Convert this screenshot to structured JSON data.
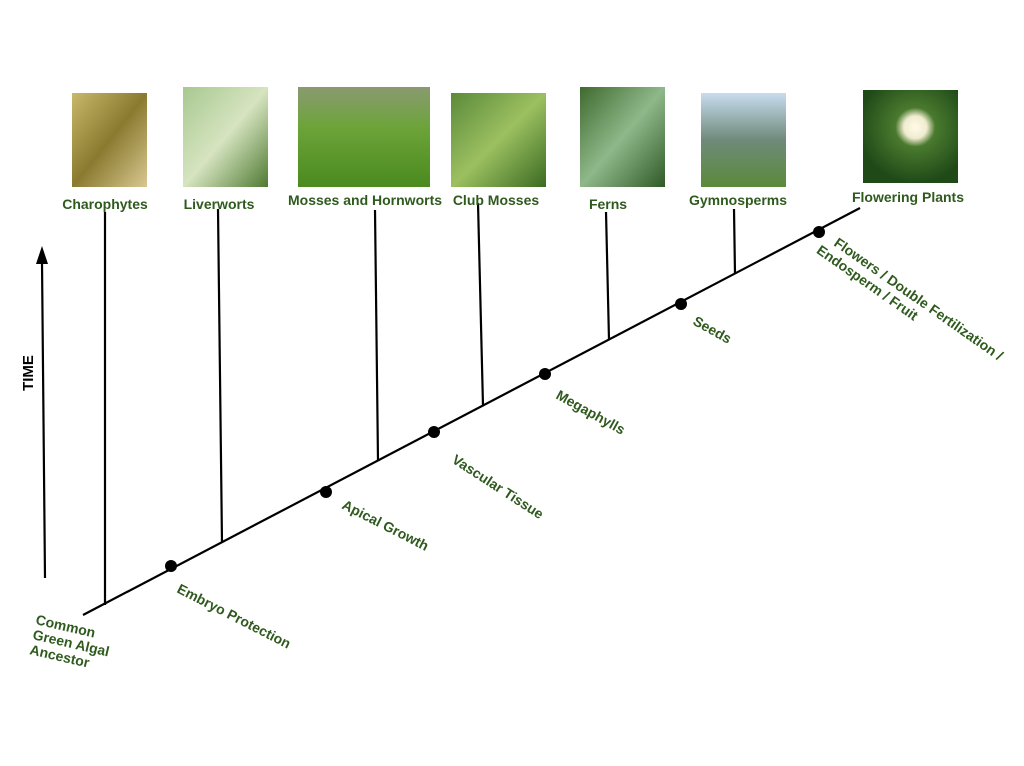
{
  "axis_label": "TIME",
  "root": {
    "lines": [
      "Common",
      "Green Algal",
      "Ancestor"
    ]
  },
  "taxa": [
    {
      "label": "Charophytes"
    },
    {
      "label": "Liverworts"
    },
    {
      "label": "Mosses and Hornworts"
    },
    {
      "label": "Club Mosses"
    },
    {
      "label": "Ferns"
    },
    {
      "label": "Gymnosperms"
    },
    {
      "label": "Flowering Plants"
    }
  ],
  "traits": [
    {
      "lines": [
        "Embryo Protection"
      ]
    },
    {
      "lines": [
        "Apical Growth"
      ]
    },
    {
      "lines": [
        "Vascular Tissue"
      ]
    },
    {
      "lines": [
        "Megaphylls"
      ]
    },
    {
      "lines": [
        "Seeds"
      ]
    },
    {
      "lines": [
        "Flowers / Double Fertilization /",
        "Endosperm / Fruit"
      ]
    }
  ]
}
